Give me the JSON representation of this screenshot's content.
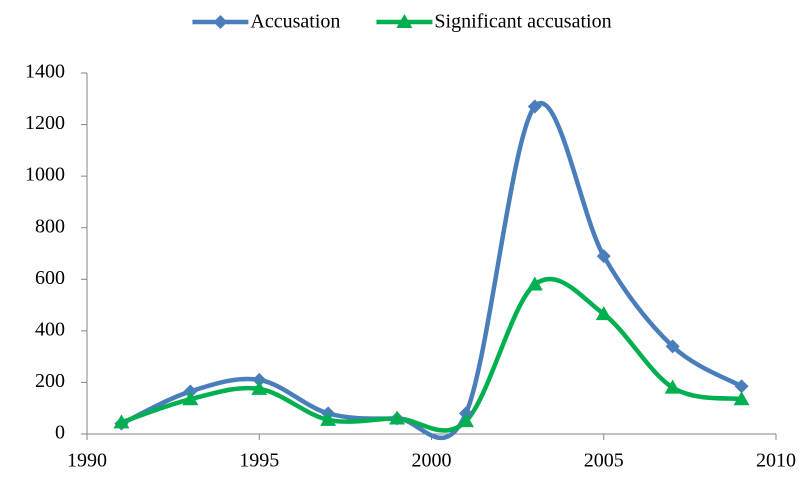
{
  "chart_data": {
    "type": "line",
    "x": [
      1991,
      1993,
      1995,
      1997,
      1999,
      2001,
      2003,
      2005,
      2007,
      2009
    ],
    "series": [
      {
        "name": "Accusation",
        "color": "#4a7ebb",
        "marker": "diamond",
        "values": [
          40,
          165,
          210,
          80,
          60,
          80,
          1270,
          690,
          340,
          185
        ]
      },
      {
        "name": "Significant accusation",
        "color": "#00b050",
        "marker": "triangle",
        "values": [
          45,
          135,
          175,
          55,
          60,
          50,
          580,
          465,
          180,
          135
        ]
      }
    ],
    "xlim": [
      1990,
      2010
    ],
    "xticks": [
      1990,
      1995,
      2000,
      2005,
      2010
    ],
    "ylim": [
      0,
      1400
    ],
    "yticks": [
      0,
      200,
      400,
      600,
      800,
      1000,
      1200,
      1400
    ],
    "smooth": true,
    "legend": "top"
  }
}
